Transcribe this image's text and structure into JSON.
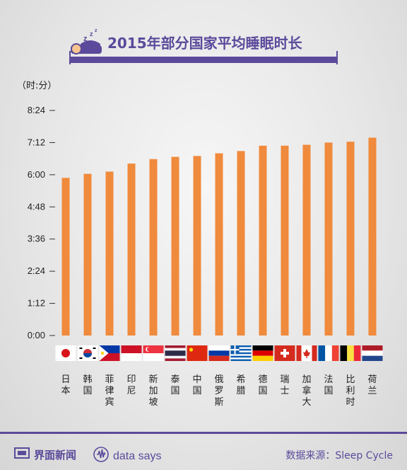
{
  "title": "2015年部分国家平均睡眠时长",
  "footer": {
    "brand": "界面新闻",
    "brand_sub": "data says",
    "source": "数据来源：Sleep Cycle"
  },
  "colors": {
    "bar": "#f08a3c",
    "accent": "#5b4a9b"
  },
  "chart_data": {
    "type": "bar",
    "title": "2015年部分国家平均睡眠时长",
    "ylabel": "（时:分）",
    "xlabel": "",
    "y_unit": "minutes",
    "ylim": [
      0,
      504
    ],
    "ytick_values": [
      0,
      72,
      144,
      216,
      288,
      360,
      432,
      504
    ],
    "ytick_labels": [
      "0:00",
      "1:12",
      "2:24",
      "3:36",
      "4:48",
      "6:00",
      "7:12",
      "8:24"
    ],
    "grid": false,
    "categories": [
      "日本",
      "韩国",
      "菲律宾",
      "印尼",
      "新加坡",
      "泰国",
      "中国",
      "俄罗斯",
      "希腊",
      "德国",
      "瑞士",
      "加拿大",
      "法国",
      "比利时",
      "荷兰"
    ],
    "flags": [
      "japan",
      "south-korea",
      "philippines",
      "indonesia",
      "singapore",
      "thailand",
      "china",
      "russia",
      "greece",
      "germany",
      "switzerland",
      "canada",
      "france",
      "belgium",
      "netherlands"
    ],
    "values": [
      353,
      362,
      367,
      385,
      395,
      400,
      402,
      408,
      413,
      425,
      425,
      427,
      432,
      434,
      443
    ]
  }
}
